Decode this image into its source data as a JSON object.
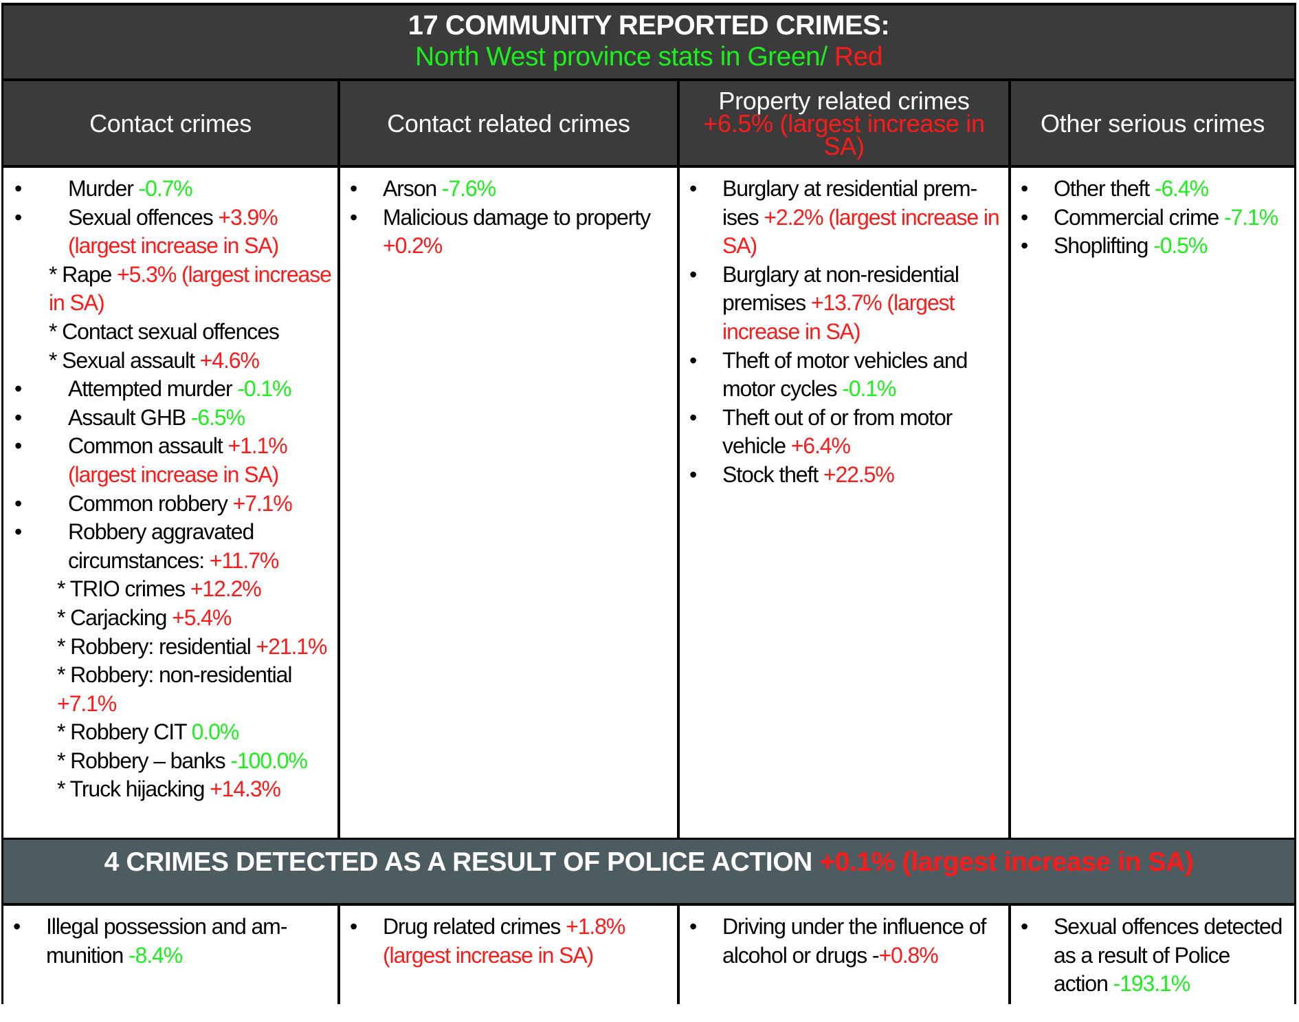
{
  "title": {
    "line1": "17 COMMUNITY REPORTED CRIMES:",
    "line2_green": "North West province stats in Green/ ",
    "line2_red": "Red"
  },
  "colors": {
    "green": "#1cf01c",
    "red": "#ff1a1a",
    "header_bg": "#3b3b3b",
    "police_bg": "#4d5c61"
  },
  "headers": [
    {
      "label": "Contact crimes",
      "note": ""
    },
    {
      "label": "Contact related crimes",
      "note": ""
    },
    {
      "label": "Property related crimes",
      "note": "+6.5% (largest increase in SA)"
    },
    {
      "label": "Other serious crimes",
      "note": ""
    }
  ],
  "columns": [
    {
      "items": [
        {
          "kind": "bul",
          "marker": "•",
          "text": "Murder ",
          "value": "-0.7%",
          "color": "green"
        },
        {
          "kind": "bul",
          "marker": "•",
          "text": "Sexual offences ",
          "value": "+3.9% (largest increase in SA)",
          "color": "red"
        },
        {
          "kind": "sub",
          "marker": "",
          "text": "*  Rape ",
          "value": "+5.3% (largest increase in SA)",
          "color": "red"
        },
        {
          "kind": "sub",
          "marker": "",
          "text": "* Contact sexual offences",
          "value": "",
          "color": "red"
        },
        {
          "kind": "sub",
          "marker": "",
          "text": "* Sexual assault ",
          "value": "+4.6%",
          "color": "red"
        },
        {
          "kind": "bul",
          "marker": "•",
          "text": "Attempted murder  ",
          "value": "-0.1%",
          "color": "green"
        },
        {
          "kind": "bul",
          "marker": "•",
          "text": "Assault GHB ",
          "value": "-6.5%",
          "color": "green"
        },
        {
          "kind": "bul",
          "marker": "•",
          "text": "Common assault ",
          "value": "+1.1% (largest increase in SA)",
          "color": "red"
        },
        {
          "kind": "bul",
          "marker": "•",
          "text": "Common robbery ",
          "value": "+7.1%",
          "color": "red"
        },
        {
          "kind": "bul",
          "marker": "•",
          "text": "Robbery aggravated circumstances: ",
          "value": "+11.7%",
          "color": "red"
        },
        {
          "kind": "sub2",
          "marker": "",
          "text": "* TRIO crimes ",
          "value": "+12.2%",
          "color": "red"
        },
        {
          "kind": "sub2",
          "marker": "",
          "text": "* Carjacking ",
          "value": "+5.4%",
          "color": "red"
        },
        {
          "kind": "sub2",
          "marker": "",
          "text": "* Robbery: residential ",
          "value": "+21.1%",
          "color": "red"
        },
        {
          "kind": "sub2",
          "marker": "",
          "text": "* Robbery: non-residential ",
          "value": "+7.1%",
          "color": "red"
        },
        {
          "kind": "sub2",
          "marker": "",
          "text": "* Robbery CIT ",
          "value": "0.0%",
          "color": "green"
        },
        {
          "kind": "sub2",
          "marker": "",
          "text": "* Robbery – banks ",
          "value": "-100.0%",
          "color": "green"
        },
        {
          "kind": "sub2",
          "marker": "",
          "text": "* Truck hijacking ",
          "value": "+14.3%",
          "color": "red"
        }
      ]
    },
    {
      "items": [
        {
          "kind": "bul",
          "marker": "•",
          "text": "Arson ",
          "value": "-7.6%",
          "color": "green"
        },
        {
          "kind": "bul",
          "marker": "•",
          "text": "Malicious damage to property ",
          "value": "+0.2%",
          "color": "red"
        }
      ]
    },
    {
      "items": [
        {
          "kind": "bul",
          "marker": "•",
          "text": "Burglary at residential prem-ises ",
          "value": "+2.2% (largest increase in SA)",
          "color": "red"
        },
        {
          "kind": "bul",
          "marker": "•",
          "text": "Burglary at non-residential premises ",
          "value": "+13.7% (largest increase in SA)",
          "color": "red"
        },
        {
          "kind": "bul",
          "marker": "•",
          "text": "Theft of motor vehicles and motor cycles ",
          "value": "-0.1%",
          "color": "green"
        },
        {
          "kind": "bul",
          "marker": "•",
          "text": "Theft out of or from motor vehicle ",
          "value": "+6.4%",
          "color": "red"
        },
        {
          "kind": "bul",
          "marker": "•",
          "text": "Stock theft ",
          "value": "+22.5%",
          "color": "red"
        }
      ]
    },
    {
      "items": [
        {
          "kind": "bul",
          "marker": "•",
          "text": "Other theft ",
          "value": "-6.4%",
          "color": "green"
        },
        {
          "kind": "bul",
          "marker": "•",
          "text": "Commercial crime ",
          "value": "-7.1%",
          "color": "green"
        },
        {
          "kind": "bul",
          "marker": "•",
          "text": "Shoplifting ",
          "value": "-0.5%",
          "color": "green"
        }
      ]
    }
  ],
  "police": {
    "title": "4 CRIMES DETECTED AS A RESULT OF POLICE ACTION ",
    "title_value": "+0.1% (largest increase in SA)",
    "columns": [
      {
        "items": [
          {
            "kind": "bul",
            "marker": "•",
            "text": "Illegal possession and am-munition ",
            "value": "-8.4%",
            "color": "green"
          }
        ]
      },
      {
        "items": [
          {
            "kind": "bul",
            "marker": "•",
            "text": "Drug related crimes ",
            "value": "+1.8% (largest increase in SA)",
            "color": "red"
          }
        ]
      },
      {
        "items": [
          {
            "kind": "bul",
            "marker": "•",
            "text": "Driving under the influence of alcohol or drugs  -",
            "value": "+0.8%",
            "color": "red"
          }
        ]
      },
      {
        "items": [
          {
            "kind": "bul",
            "marker": "•",
            "text": "Sexual offences detected as a result of Police action ",
            "value": "-193.1%",
            "color": "green"
          }
        ]
      }
    ]
  }
}
